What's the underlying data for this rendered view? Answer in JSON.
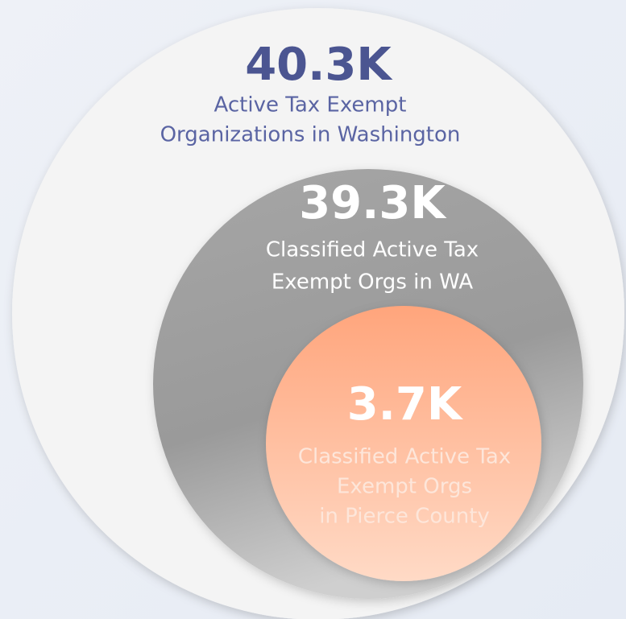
{
  "circles": [
    {
      "value": "40.3K",
      "label": [
        "Active Tax Exempt",
        "Organizations in Washington"
      ]
    },
    {
      "value": "39.3K",
      "label": [
        "Classified Active Tax",
        "Exempt Orgs in WA"
      ]
    },
    {
      "value": "3.7K",
      "label": [
        "Classified Active Tax",
        "Exempt Orgs",
        "in Pierce County"
      ]
    }
  ]
}
